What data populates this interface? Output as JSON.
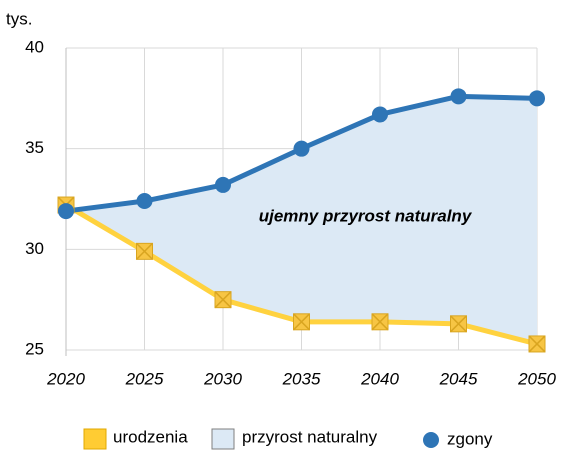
{
  "chart_data": {
    "type": "line",
    "y_unit": "tys.",
    "annotation": "ujemny przyrost naturalny",
    "categories": [
      "2020",
      "2025",
      "2030",
      "2035",
      "2040",
      "2045",
      "2050"
    ],
    "series": [
      {
        "name": "urodzenia",
        "color": "#ffd23f",
        "values": [
          32.2,
          29.9,
          27.5,
          26.4,
          26.4,
          26.3,
          25.3
        ]
      },
      {
        "name": "zgony",
        "color": "#2e75b6",
        "values": [
          31.9,
          32.4,
          33.2,
          35.0,
          36.7,
          37.6,
          37.5
        ]
      }
    ],
    "area_legend": "przyrost naturalny",
    "area_color": "#dce9f5",
    "ylim": [
      25,
      40
    ],
    "yticks": [
      25,
      30,
      35,
      40
    ],
    "grid": true
  }
}
